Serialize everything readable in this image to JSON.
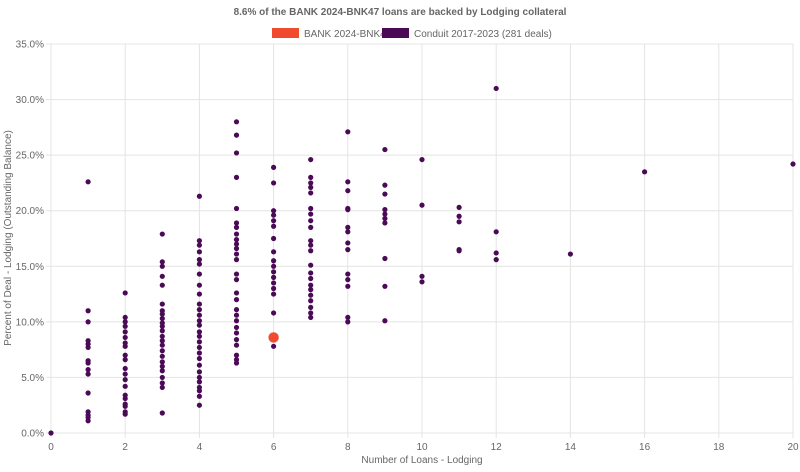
{
  "chart_data": {
    "type": "scatter",
    "title": "8.6% of the BANK 2024-BNK47 loans are backed by Lodging collateral",
    "xlabel": "Number of Loans - Lodging",
    "ylabel": "Percent of Deal - Lodging (Outstanding Balance)",
    "xlim": [
      0,
      20
    ],
    "ylim": [
      0,
      35
    ],
    "x_ticks": [
      "0",
      "2",
      "4",
      "6",
      "8",
      "10",
      "12",
      "14",
      "16",
      "18",
      "20"
    ],
    "y_ticks": [
      "0.0%",
      "5.0%",
      "10.0%",
      "15.0%",
      "20.0%",
      "25.0%",
      "30.0%",
      "35.0%"
    ],
    "grid": true,
    "legend": "top-center",
    "series": [
      {
        "name": "BANK 2024-BNK47",
        "color": "#f04a2f",
        "points": [
          [
            6,
            8.6
          ]
        ]
      },
      {
        "name": "Conduit 2017-2023 (281 deals)",
        "color": "#4a0a55",
        "points": [
          [
            0,
            0.0
          ],
          [
            1,
            22.6
          ],
          [
            1,
            11.0
          ],
          [
            1,
            10.0
          ],
          [
            1,
            8.3
          ],
          [
            1,
            8.0
          ],
          [
            1,
            7.7
          ],
          [
            1,
            6.5
          ],
          [
            1,
            6.3
          ],
          [
            1,
            5.7
          ],
          [
            1,
            5.3
          ],
          [
            1,
            3.6
          ],
          [
            1,
            1.9
          ],
          [
            1,
            1.6
          ],
          [
            1,
            1.4
          ],
          [
            1,
            1.1
          ],
          [
            2,
            12.6
          ],
          [
            2,
            10.4
          ],
          [
            2,
            10.0
          ],
          [
            2,
            9.6
          ],
          [
            2,
            9.1
          ],
          [
            2,
            8.6
          ],
          [
            2,
            8.1
          ],
          [
            2,
            7.8
          ],
          [
            2,
            7.0
          ],
          [
            2,
            6.6
          ],
          [
            2,
            5.8
          ],
          [
            2,
            5.3
          ],
          [
            2,
            4.8
          ],
          [
            2,
            4.2
          ],
          [
            2,
            3.4
          ],
          [
            2,
            3.1
          ],
          [
            2,
            2.6
          ],
          [
            2,
            2.4
          ],
          [
            2,
            1.9
          ],
          [
            2,
            1.7
          ],
          [
            3,
            17.9
          ],
          [
            3,
            15.4
          ],
          [
            3,
            15.0
          ],
          [
            3,
            14.1
          ],
          [
            3,
            13.3
          ],
          [
            3,
            11.6
          ],
          [
            3,
            11.0
          ],
          [
            3,
            10.7
          ],
          [
            3,
            10.3
          ],
          [
            3,
            9.9
          ],
          [
            3,
            9.6
          ],
          [
            3,
            9.2
          ],
          [
            3,
            8.7
          ],
          [
            3,
            8.3
          ],
          [
            3,
            7.9
          ],
          [
            3,
            7.4
          ],
          [
            3,
            6.9
          ],
          [
            3,
            6.4
          ],
          [
            3,
            6.0
          ],
          [
            3,
            5.6
          ],
          [
            3,
            5.0
          ],
          [
            3,
            4.5
          ],
          [
            3,
            4.1
          ],
          [
            3,
            1.8
          ],
          [
            4,
            21.3
          ],
          [
            4,
            17.3
          ],
          [
            4,
            16.9
          ],
          [
            4,
            16.3
          ],
          [
            4,
            15.6
          ],
          [
            4,
            15.2
          ],
          [
            4,
            14.3
          ],
          [
            4,
            13.3
          ],
          [
            4,
            12.5
          ],
          [
            4,
            11.6
          ],
          [
            4,
            11.1
          ],
          [
            4,
            10.6
          ],
          [
            4,
            10.1
          ],
          [
            4,
            9.7
          ],
          [
            4,
            9.1
          ],
          [
            4,
            8.7
          ],
          [
            4,
            8.2
          ],
          [
            4,
            7.7
          ],
          [
            4,
            7.2
          ],
          [
            4,
            6.7
          ],
          [
            4,
            6.1
          ],
          [
            4,
            5.5
          ],
          [
            4,
            5.0
          ],
          [
            4,
            4.6
          ],
          [
            4,
            4.1
          ],
          [
            4,
            3.8
          ],
          [
            4,
            3.3
          ],
          [
            4,
            2.5
          ],
          [
            5,
            28.0
          ],
          [
            5,
            26.8
          ],
          [
            5,
            25.2
          ],
          [
            5,
            23.0
          ],
          [
            5,
            20.2
          ],
          [
            5,
            18.9
          ],
          [
            5,
            18.5
          ],
          [
            5,
            17.9
          ],
          [
            5,
            17.4
          ],
          [
            5,
            17.0
          ],
          [
            5,
            16.6
          ],
          [
            5,
            16.1
          ],
          [
            5,
            15.6
          ],
          [
            5,
            14.3
          ],
          [
            5,
            13.8
          ],
          [
            5,
            12.6
          ],
          [
            5,
            12.0
          ],
          [
            5,
            11.1
          ],
          [
            5,
            10.6
          ],
          [
            5,
            10.1
          ],
          [
            5,
            9.5
          ],
          [
            5,
            9.0
          ],
          [
            5,
            8.4
          ],
          [
            5,
            7.9
          ],
          [
            5,
            7.0
          ],
          [
            5,
            6.6
          ],
          [
            5,
            6.3
          ],
          [
            6,
            23.9
          ],
          [
            6,
            22.5
          ],
          [
            6,
            20.0
          ],
          [
            6,
            19.6
          ],
          [
            6,
            19.1
          ],
          [
            6,
            18.6
          ],
          [
            6,
            17.5
          ],
          [
            6,
            16.3
          ],
          [
            6,
            15.5
          ],
          [
            6,
            15.0
          ],
          [
            6,
            14.5
          ],
          [
            6,
            14.0
          ],
          [
            6,
            13.5
          ],
          [
            6,
            13.0
          ],
          [
            6,
            12.5
          ],
          [
            6,
            10.8
          ],
          [
            6,
            7.8
          ],
          [
            7,
            24.6
          ],
          [
            7,
            23.0
          ],
          [
            7,
            22.5
          ],
          [
            7,
            22.1
          ],
          [
            7,
            21.6
          ],
          [
            7,
            20.2
          ],
          [
            7,
            19.7
          ],
          [
            7,
            19.1
          ],
          [
            7,
            18.5
          ],
          [
            7,
            17.3
          ],
          [
            7,
            16.9
          ],
          [
            7,
            16.4
          ],
          [
            7,
            15.1
          ],
          [
            7,
            14.4
          ],
          [
            7,
            13.9
          ],
          [
            7,
            13.3
          ],
          [
            7,
            12.9
          ],
          [
            7,
            12.4
          ],
          [
            7,
            11.9
          ],
          [
            7,
            11.3
          ],
          [
            7,
            10.8
          ],
          [
            7,
            10.4
          ],
          [
            8,
            27.1
          ],
          [
            8,
            22.6
          ],
          [
            8,
            21.8
          ],
          [
            8,
            20.2
          ],
          [
            8,
            20.1
          ],
          [
            8,
            18.5
          ],
          [
            8,
            18.1
          ],
          [
            8,
            17.1
          ],
          [
            8,
            16.5
          ],
          [
            8,
            14.3
          ],
          [
            8,
            13.8
          ],
          [
            8,
            13.2
          ],
          [
            8,
            10.4
          ],
          [
            8,
            10.0
          ],
          [
            9,
            25.5
          ],
          [
            9,
            22.3
          ],
          [
            9,
            21.5
          ],
          [
            9,
            20.1
          ],
          [
            9,
            19.7
          ],
          [
            9,
            19.3
          ],
          [
            9,
            18.9
          ],
          [
            9,
            15.7
          ],
          [
            9,
            13.2
          ],
          [
            9,
            10.1
          ],
          [
            10,
            24.6
          ],
          [
            10,
            20.5
          ],
          [
            10,
            14.1
          ],
          [
            10,
            13.6
          ],
          [
            11,
            20.3
          ],
          [
            11,
            19.5
          ],
          [
            11,
            19.0
          ],
          [
            11,
            16.5
          ],
          [
            11,
            16.4
          ],
          [
            12,
            31.0
          ],
          [
            12,
            18.1
          ],
          [
            12,
            16.2
          ],
          [
            12,
            15.6
          ],
          [
            14,
            16.1
          ],
          [
            16,
            23.5
          ],
          [
            20,
            24.2
          ]
        ]
      }
    ]
  }
}
